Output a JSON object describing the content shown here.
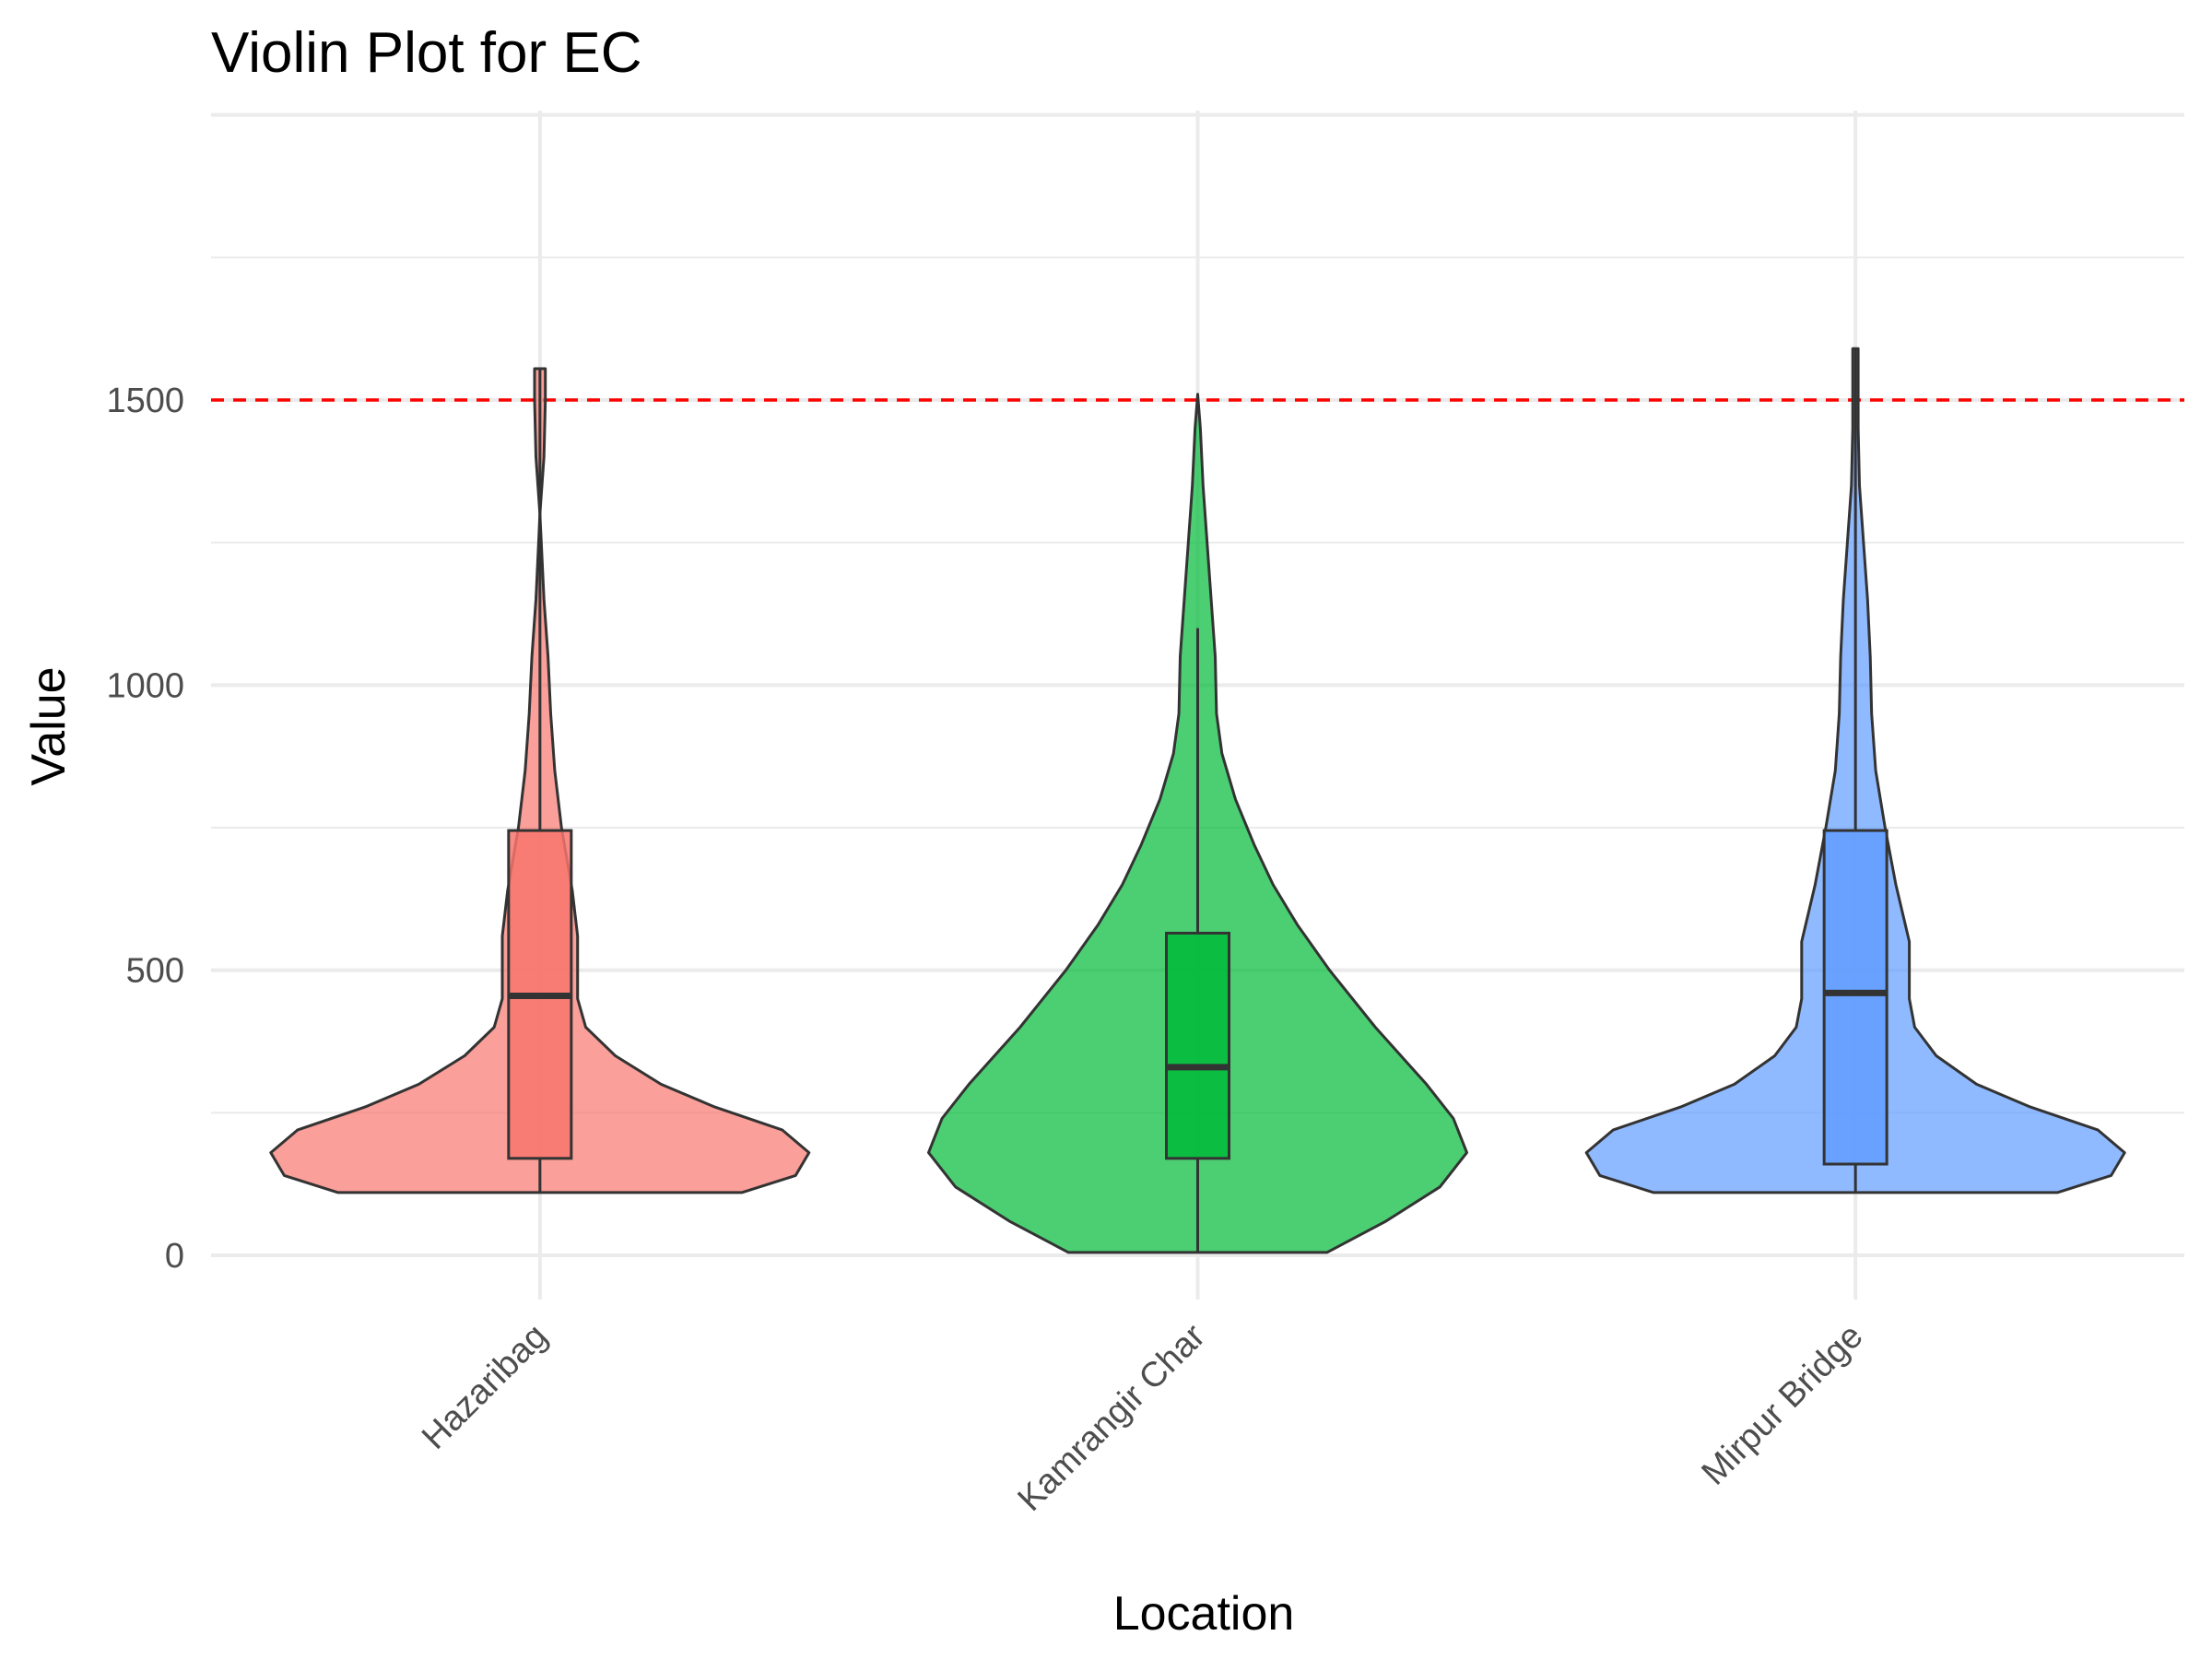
{
  "chart_data": {
    "type": "violin",
    "title": "Violin Plot for EC",
    "xlabel": "Location",
    "ylabel": "Value",
    "ylim": [
      -100,
      1750
    ],
    "yticks": [
      0,
      500,
      1000,
      1500
    ],
    "grid": true,
    "legend": "none",
    "reference_line": {
      "value": 1500,
      "color": "#ff0000",
      "style": "dashed"
    },
    "categories": [
      "Hazaribag",
      "Kamrangir Char",
      "Mirpur Bridge"
    ],
    "series": [
      {
        "color": "#f8766d",
        "box": {
          "min": 110,
          "q1": 170,
          "median": 455,
          "q3": 745,
          "max": 1555
        },
        "density_profile": [
          [
            110,
            0.75
          ],
          [
            140,
            0.95
          ],
          [
            180,
            1.0
          ],
          [
            220,
            0.9
          ],
          [
            260,
            0.65
          ],
          [
            300,
            0.45
          ],
          [
            350,
            0.28
          ],
          [
            400,
            0.17
          ],
          [
            450,
            0.14
          ],
          [
            500,
            0.14
          ],
          [
            560,
            0.14
          ],
          [
            640,
            0.12
          ],
          [
            750,
            0.08
          ],
          [
            850,
            0.055
          ],
          [
            950,
            0.04
          ],
          [
            1050,
            0.03
          ],
          [
            1150,
            0.015
          ],
          [
            1250,
            0.005
          ],
          [
            1300,
            0.0
          ],
          [
            1400,
            -0.015
          ],
          [
            1500,
            -0.02
          ],
          [
            1555,
            -0.02
          ]
        ]
      },
      {
        "color": "#00ba38",
        "box": {
          "min": 5,
          "q1": 170,
          "median": 330,
          "q3": 565,
          "max": 1100
        },
        "density_profile": [
          [
            5,
            0.48
          ],
          [
            60,
            0.7
          ],
          [
            120,
            0.9
          ],
          [
            180,
            1.0
          ],
          [
            240,
            0.95
          ],
          [
            300,
            0.85
          ],
          [
            400,
            0.66
          ],
          [
            500,
            0.49
          ],
          [
            580,
            0.37
          ],
          [
            650,
            0.28
          ],
          [
            720,
            0.21
          ],
          [
            800,
            0.14
          ],
          [
            880,
            0.09
          ],
          [
            950,
            0.07
          ],
          [
            1050,
            0.065
          ],
          [
            1150,
            0.05
          ],
          [
            1250,
            0.035
          ],
          [
            1350,
            0.02
          ],
          [
            1450,
            0.01
          ],
          [
            1510,
            0.0
          ]
        ]
      },
      {
        "color": "#619cff",
        "box": {
          "min": 110,
          "q1": 160,
          "median": 460,
          "q3": 745,
          "max": 1590
        },
        "density_profile": [
          [
            110,
            0.75
          ],
          [
            140,
            0.95
          ],
          [
            180,
            1.0
          ],
          [
            220,
            0.9
          ],
          [
            260,
            0.65
          ],
          [
            300,
            0.45
          ],
          [
            350,
            0.3
          ],
          [
            400,
            0.22
          ],
          [
            450,
            0.2
          ],
          [
            500,
            0.2
          ],
          [
            550,
            0.2
          ],
          [
            650,
            0.15
          ],
          [
            750,
            0.11
          ],
          [
            850,
            0.075
          ],
          [
            950,
            0.06
          ],
          [
            1050,
            0.055
          ],
          [
            1150,
            0.045
          ],
          [
            1250,
            0.03
          ],
          [
            1350,
            0.015
          ],
          [
            1450,
            0.01
          ],
          [
            1550,
            0.01
          ],
          [
            1590,
            0.01
          ]
        ]
      }
    ]
  }
}
